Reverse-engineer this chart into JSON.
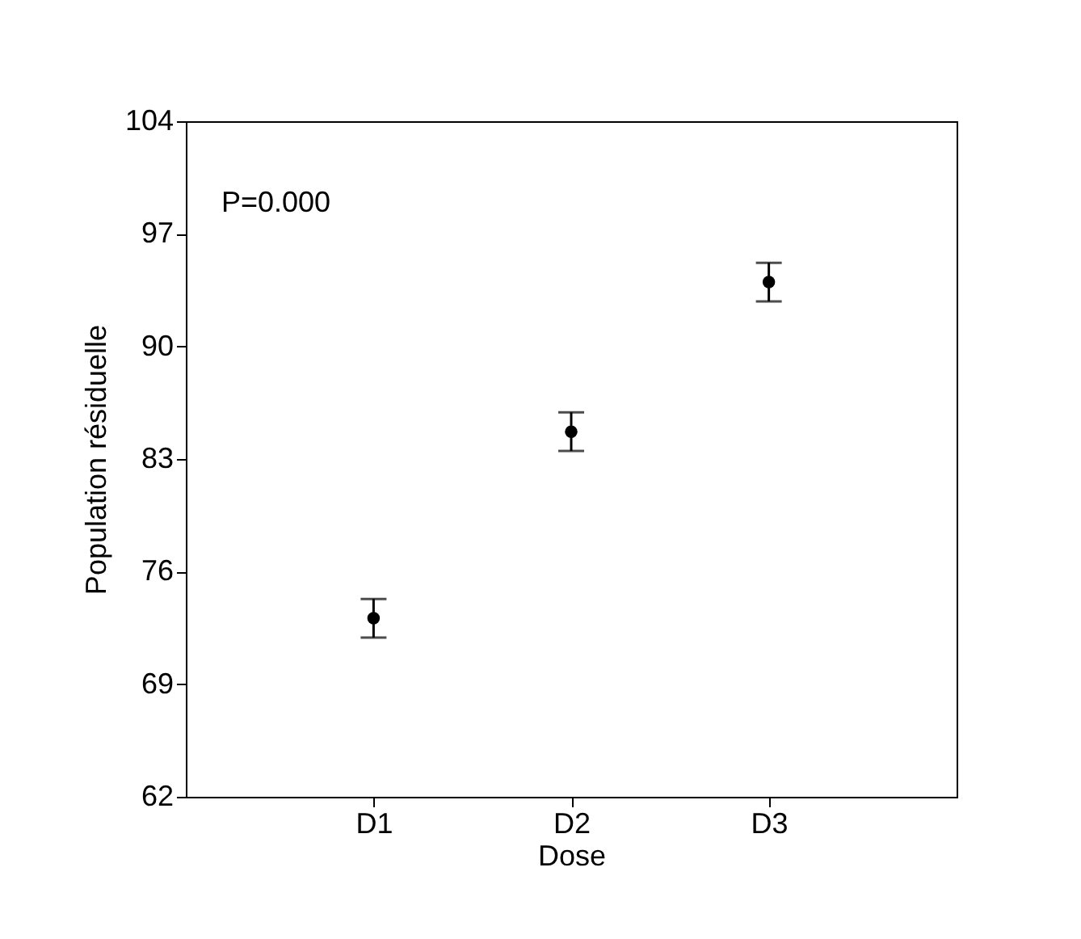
{
  "chart_data": {
    "type": "scatter",
    "xlabel": "Dose",
    "ylabel": "Population résiduelle",
    "categories": [
      "D1",
      "D2",
      "D3"
    ],
    "series": [
      {
        "color": "#000000",
        "values": [
          73.1,
          84.7,
          94.0
        ],
        "errors": [
          1.2,
          1.2,
          1.2
        ]
      }
    ],
    "ylim": [
      62,
      104
    ],
    "yticks": [
      62,
      69,
      76,
      83,
      90,
      97,
      104
    ],
    "marker": "circle",
    "grid": false,
    "annotations": [
      "P=0.000"
    ]
  }
}
